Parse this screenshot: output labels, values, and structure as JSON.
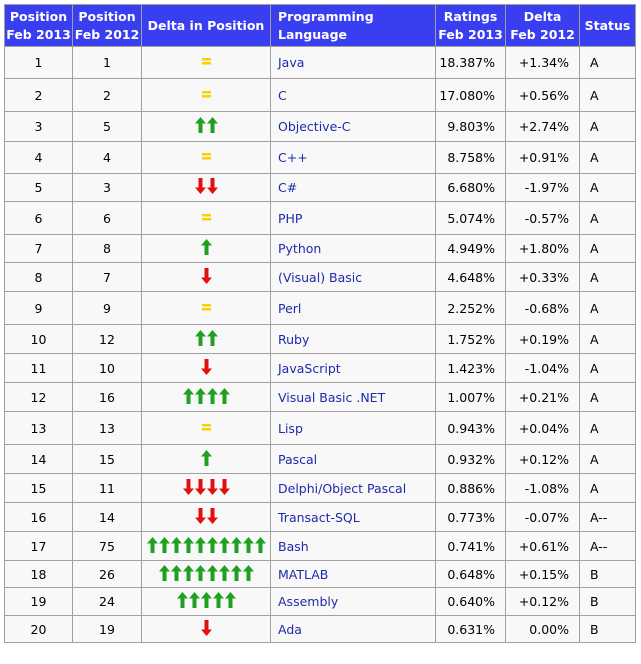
{
  "headers": [
    {
      "line1": "Position",
      "line2": "Feb 2013"
    },
    {
      "line1": "Position",
      "line2": "Feb 2012"
    },
    {
      "line1": "Delta in Position",
      "line2": ""
    },
    {
      "line1": "Programming Language",
      "line2": ""
    },
    {
      "line1": "Ratings",
      "line2": "Feb 2013"
    },
    {
      "line1": "Delta",
      "line2": "Feb 2012"
    },
    {
      "line1": "Status",
      "line2": ""
    }
  ],
  "colors": {
    "header_bg": "#3a3ef1",
    "up": "#20a020",
    "down": "#e01010",
    "same": "#f7d200",
    "link": "#1f2aaa"
  },
  "rows": [
    {
      "pos2013": "1",
      "pos2012": "1",
      "delta": {
        "dir": "same",
        "count": 1
      },
      "language": "Java",
      "rating": "18.387%",
      "delta_rating": "+1.34%",
      "status": "A"
    },
    {
      "pos2013": "2",
      "pos2012": "2",
      "delta": {
        "dir": "same",
        "count": 1
      },
      "language": "C",
      "rating": "17.080%",
      "delta_rating": "+0.56%",
      "status": "A"
    },
    {
      "pos2013": "3",
      "pos2012": "5",
      "delta": {
        "dir": "up",
        "count": 2
      },
      "language": "Objective-C",
      "rating": "9.803%",
      "delta_rating": "+2.74%",
      "status": "A"
    },
    {
      "pos2013": "4",
      "pos2012": "4",
      "delta": {
        "dir": "same",
        "count": 1
      },
      "language": "C++",
      "rating": "8.758%",
      "delta_rating": "+0.91%",
      "status": "A"
    },
    {
      "pos2013": "5",
      "pos2012": "3",
      "delta": {
        "dir": "down",
        "count": 2
      },
      "language": "C#",
      "rating": "6.680%",
      "delta_rating": "-1.97%",
      "status": "A"
    },
    {
      "pos2013": "6",
      "pos2012": "6",
      "delta": {
        "dir": "same",
        "count": 1
      },
      "language": "PHP",
      "rating": "5.074%",
      "delta_rating": "-0.57%",
      "status": "A"
    },
    {
      "pos2013": "7",
      "pos2012": "8",
      "delta": {
        "dir": "up",
        "count": 1
      },
      "language": "Python",
      "rating": "4.949%",
      "delta_rating": "+1.80%",
      "status": "A"
    },
    {
      "pos2013": "8",
      "pos2012": "7",
      "delta": {
        "dir": "down",
        "count": 1
      },
      "language": "(Visual) Basic",
      "rating": "4.648%",
      "delta_rating": "+0.33%",
      "status": "A"
    },
    {
      "pos2013": "9",
      "pos2012": "9",
      "delta": {
        "dir": "same",
        "count": 1
      },
      "language": "Perl",
      "rating": "2.252%",
      "delta_rating": "-0.68%",
      "status": "A"
    },
    {
      "pos2013": "10",
      "pos2012": "12",
      "delta": {
        "dir": "up",
        "count": 2
      },
      "language": "Ruby",
      "rating": "1.752%",
      "delta_rating": "+0.19%",
      "status": "A"
    },
    {
      "pos2013": "11",
      "pos2012": "10",
      "delta": {
        "dir": "down",
        "count": 1
      },
      "language": "JavaScript",
      "rating": "1.423%",
      "delta_rating": "-1.04%",
      "status": "A"
    },
    {
      "pos2013": "12",
      "pos2012": "16",
      "delta": {
        "dir": "up",
        "count": 4
      },
      "language": "Visual Basic .NET",
      "rating": "1.007%",
      "delta_rating": "+0.21%",
      "status": "A"
    },
    {
      "pos2013": "13",
      "pos2012": "13",
      "delta": {
        "dir": "same",
        "count": 1
      },
      "language": "Lisp",
      "rating": "0.943%",
      "delta_rating": "+0.04%",
      "status": "A"
    },
    {
      "pos2013": "14",
      "pos2012": "15",
      "delta": {
        "dir": "up",
        "count": 1
      },
      "language": "Pascal",
      "rating": "0.932%",
      "delta_rating": "+0.12%",
      "status": "A"
    },
    {
      "pos2013": "15",
      "pos2012": "11",
      "delta": {
        "dir": "down",
        "count": 4
      },
      "language": "Delphi/Object Pascal",
      "rating": "0.886%",
      "delta_rating": "-1.08%",
      "status": "A"
    },
    {
      "pos2013": "16",
      "pos2012": "14",
      "delta": {
        "dir": "down",
        "count": 2
      },
      "language": "Transact-SQL",
      "rating": "0.773%",
      "delta_rating": "-0.07%",
      "status": "A--"
    },
    {
      "pos2013": "17",
      "pos2012": "75",
      "delta": {
        "dir": "up",
        "count": 10
      },
      "language": "Bash",
      "rating": "0.741%",
      "delta_rating": "+0.61%",
      "status": "A--"
    },
    {
      "pos2013": "18",
      "pos2012": "26",
      "delta": {
        "dir": "up",
        "count": 8
      },
      "language": "MATLAB",
      "rating": "0.648%",
      "delta_rating": "+0.15%",
      "status": "B"
    },
    {
      "pos2013": "19",
      "pos2012": "24",
      "delta": {
        "dir": "up",
        "count": 5
      },
      "language": "Assembly",
      "rating": "0.640%",
      "delta_rating": "+0.12%",
      "status": "B"
    },
    {
      "pos2013": "20",
      "pos2012": "19",
      "delta": {
        "dir": "down",
        "count": 1
      },
      "language": "Ada",
      "rating": "0.631%",
      "delta_rating": "0.00%",
      "status": "B"
    }
  ]
}
